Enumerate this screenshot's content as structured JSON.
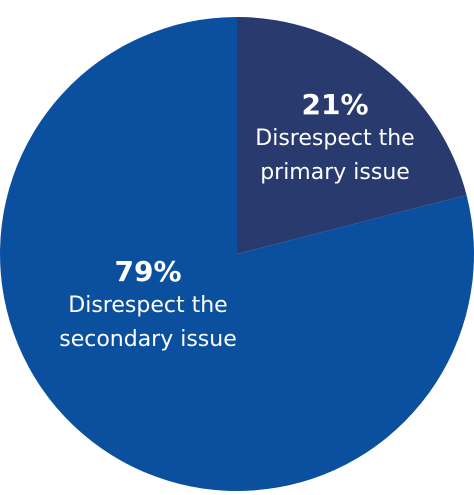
{
  "chart_data": {
    "type": "pie",
    "categories": [
      "Disrespect the primary issue",
      "Disrespect the secondary issue"
    ],
    "values": [
      21,
      79
    ],
    "value_labels": [
      "21%",
      "79%"
    ],
    "colors": [
      "#283a6e",
      "#0b4f9f"
    ]
  }
}
